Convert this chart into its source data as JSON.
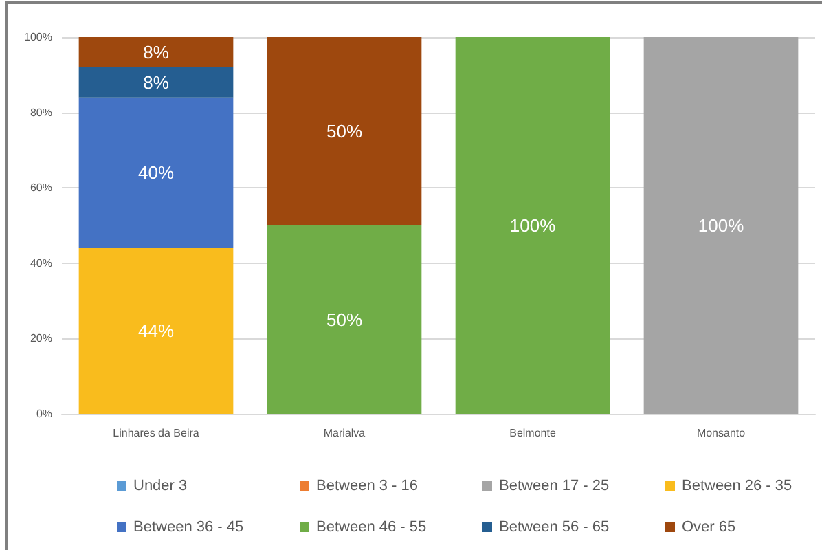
{
  "chart_data": {
    "type": "bar",
    "stacked": true,
    "categories": [
      "Linhares da Beira",
      "Marialva",
      "Belmonte",
      "Monsanto"
    ],
    "series": [
      {
        "name": "Under 3",
        "color": "#5b9bd5",
        "values": [
          null,
          null,
          null,
          null
        ]
      },
      {
        "name": "Between 3 - 16",
        "color": "#ed7d31",
        "values": [
          null,
          null,
          null,
          null
        ]
      },
      {
        "name": "Between 17 - 25",
        "color": "#a5a5a5",
        "values": [
          null,
          null,
          null,
          100
        ],
        "value_labels": [
          null,
          null,
          null,
          "100%"
        ]
      },
      {
        "name": "Between 26 - 35",
        "color": "#f9bc1d",
        "values": [
          44,
          null,
          null,
          null
        ],
        "value_labels": [
          "44%",
          null,
          null,
          null
        ]
      },
      {
        "name": "Between 36 - 45",
        "color": "#4472c4",
        "values": [
          40,
          null,
          null,
          null
        ],
        "value_labels": [
          "40%",
          null,
          null,
          null
        ]
      },
      {
        "name": "Between 46 - 55",
        "color": "#70ad47",
        "values": [
          null,
          50,
          100,
          null
        ],
        "value_labels": [
          null,
          "50%",
          "100%",
          null
        ]
      },
      {
        "name": "Between 56 - 65",
        "color": "#255e91",
        "values": [
          8,
          null,
          null,
          null
        ],
        "value_labels": [
          "8%",
          null,
          null,
          null
        ]
      },
      {
        "name": "Over 65",
        "color": "#9e480e",
        "values": [
          8,
          50,
          null,
          null
        ],
        "value_labels": [
          "8%",
          "50%",
          null,
          null
        ]
      }
    ],
    "ylim": [
      0,
      100
    ],
    "yticks": [
      {
        "value": 0,
        "label": "0%"
      },
      {
        "value": 20,
        "label": "20%"
      },
      {
        "value": 40,
        "label": "40%"
      },
      {
        "value": 60,
        "label": "60%"
      },
      {
        "value": 80,
        "label": "80%"
      },
      {
        "value": 100,
        "label": "100%"
      }
    ],
    "grid": "y",
    "legend": "bottom"
  }
}
